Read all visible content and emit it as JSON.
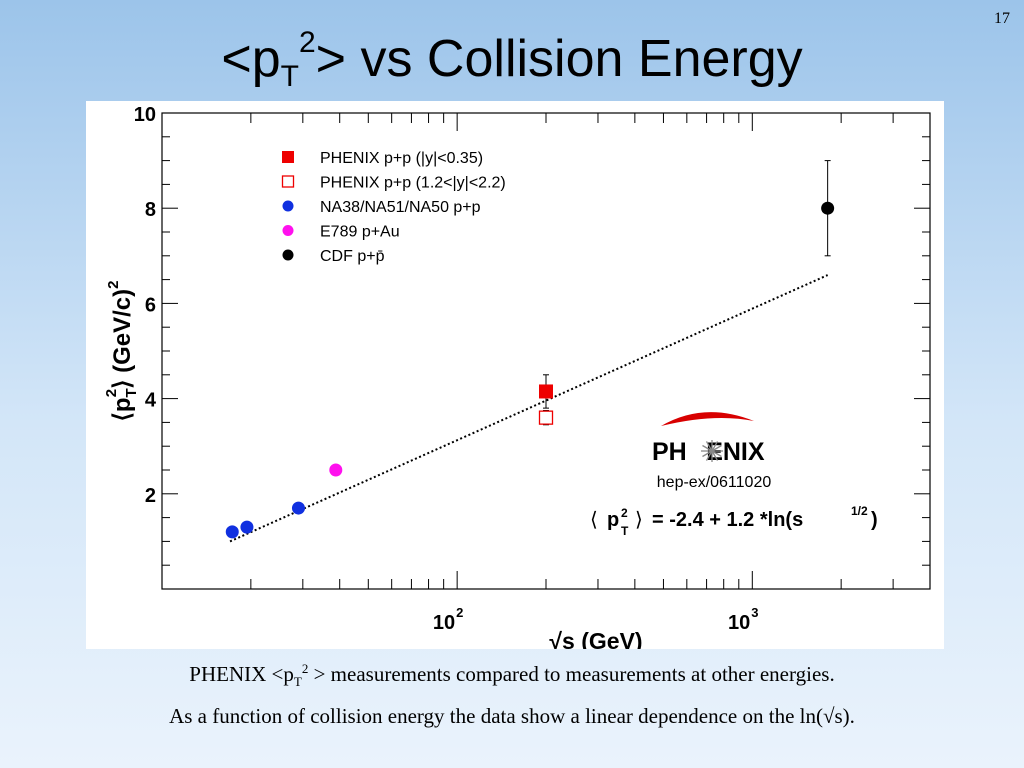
{
  "slide": {
    "number": "17",
    "title": {
      "prefix": "<p",
      "sub": "T",
      "sup": "2",
      "suffix": "> vs Collision Energy"
    },
    "caption_line1": {
      "prefix": "PHENIX <p",
      "sub": "T",
      "sup": "2",
      "suffix": " > measurements compared to measurements at other energies."
    },
    "caption_line2": "As a function of collision energy the data show a linear dependence on the ln(√s)."
  },
  "chart_data": {
    "type": "scatter",
    "x_scale": "log",
    "xlim": [
      10,
      4000
    ],
    "ylim": [
      0,
      10
    ],
    "grid": false,
    "legend_position": "top-left",
    "xlabel": "√s (GeV)",
    "ylabel": "⟨p_T^2⟩ (GeV/c)^2",
    "y_ticks": [
      "2",
      "4",
      "6",
      "8",
      "10"
    ],
    "x_tick_labels": [
      {
        "value": 100,
        "base": "10",
        "exp": "2"
      },
      {
        "value": 1000,
        "base": "10",
        "exp": "3"
      }
    ],
    "series": [
      {
        "name": "PHENIX p+p (|y|<0.35)",
        "marker": "square-filled",
        "color": "#ee0000",
        "points": [
          {
            "x": 200,
            "y": 4.15,
            "yerr": [
              0.35,
              0.35
            ]
          }
        ]
      },
      {
        "name": "PHENIX p+p (1.2<|y|<2.2)",
        "marker": "square-open",
        "color": "#ee0000",
        "points": [
          {
            "x": 200,
            "y": 3.6,
            "yerr": [
              0.15,
              0.15
            ]
          }
        ]
      },
      {
        "name": "NA38/NA51/NA50 p+p",
        "marker": "circle",
        "color": "#1030e0",
        "points": [
          {
            "x": 17.3,
            "y": 1.2
          },
          {
            "x": 19.4,
            "y": 1.3
          },
          {
            "x": 29,
            "y": 1.7
          }
        ]
      },
      {
        "name": "E789 p+Au",
        "marker": "circle",
        "color": "#ff10ee",
        "points": [
          {
            "x": 38.8,
            "y": 2.5
          }
        ]
      },
      {
        "name": "CDF p+p̄",
        "marker": "circle",
        "color": "#000000",
        "points": [
          {
            "x": 1800,
            "y": 8.0,
            "yerr": [
              1.0,
              1.0
            ]
          }
        ]
      }
    ],
    "fit_line": {
      "style": "dotted",
      "x_range": [
        17,
        1800
      ],
      "intercept": -2.4,
      "slope": 1.2
    },
    "annotations": {
      "logo": "PHENIX",
      "reference": "hep-ex/0611020",
      "formula": "= -2.4 + 1.2 *ln(s",
      "formula_exp": "1/2",
      "formula_close": ")"
    }
  }
}
